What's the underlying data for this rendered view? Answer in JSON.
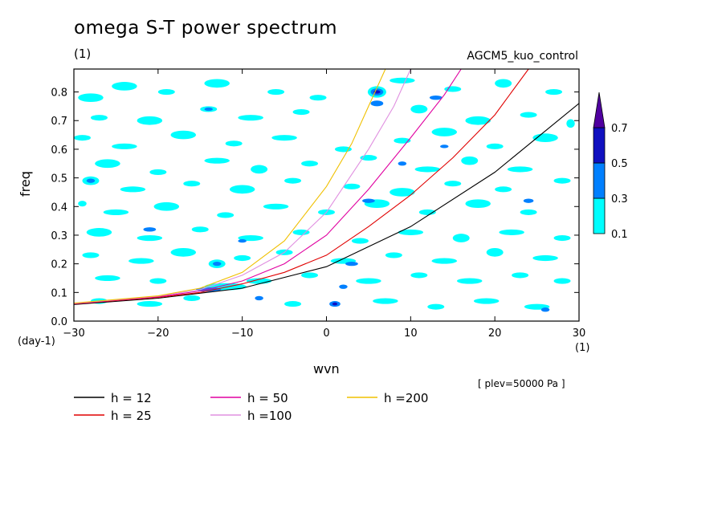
{
  "title": "omega S-T power spectrum",
  "unit_label": "(1)",
  "run_label": "AGCM5_kuo_control",
  "level_note": "[ plev=50000 Pa ]",
  "colors": {
    "level_0.1": "#00ffff",
    "level_0.3": "#0080ff",
    "level_0.5": "#1010c0",
    "level_0.7": "#5000a0",
    "h12": "#000000",
    "h25": "#e00000",
    "h50": "#e000a0",
    "h100": "#e090e0",
    "h200": "#f0c000"
  },
  "chart_data": {
    "type": "contour_fill_with_dispersion_curves",
    "title": "omega S-T power spectrum",
    "xlabel": "wvn",
    "ylabel": "freq",
    "x_unit": "(1)",
    "y_unit": "(day-1)",
    "xlim": [
      -30,
      30
    ],
    "ylim": [
      0,
      0.88
    ],
    "xticks": [
      -30,
      -20,
      -10,
      0,
      10,
      20,
      30
    ],
    "yticks": [
      0.0,
      0.1,
      0.2,
      0.3,
      0.4,
      0.5,
      0.6,
      0.7,
      0.8
    ],
    "contour_levels": [
      0.1,
      0.3,
      0.5,
      0.7
    ],
    "colorbar_labels": [
      "0.1",
      "0.3",
      "0.5",
      "0.7"
    ],
    "legend": [
      {
        "label": "h = 12",
        "color_key": "h12"
      },
      {
        "label": "h = 25",
        "color_key": "h25"
      },
      {
        "label": "h = 50",
        "color_key": "h50"
      },
      {
        "label": "h =100",
        "color_key": "h100"
      },
      {
        "label": "h =200",
        "color_key": "h200"
      }
    ],
    "curves": [
      {
        "label": "h = 12",
        "color_key": "h12",
        "points": [
          [
            -30,
            0.058
          ],
          [
            -20,
            0.08
          ],
          [
            -10,
            0.115
          ],
          [
            0,
            0.19
          ],
          [
            10,
            0.33
          ],
          [
            20,
            0.52
          ],
          [
            30,
            0.76
          ]
        ]
      },
      {
        "label": "h = 25",
        "color_key": "h25",
        "points": [
          [
            -30,
            0.06
          ],
          [
            -20,
            0.083
          ],
          [
            -15,
            0.1
          ],
          [
            -10,
            0.13
          ],
          [
            -5,
            0.17
          ],
          [
            0,
            0.23
          ],
          [
            5,
            0.33
          ],
          [
            10,
            0.44
          ],
          [
            15,
            0.57
          ],
          [
            20,
            0.72
          ],
          [
            24,
            0.88
          ]
        ]
      },
      {
        "label": "h = 50",
        "color_key": "h50",
        "points": [
          [
            -30,
            0.061
          ],
          [
            -20,
            0.085
          ],
          [
            -15,
            0.105
          ],
          [
            -10,
            0.14
          ],
          [
            -5,
            0.2
          ],
          [
            0,
            0.3
          ],
          [
            5,
            0.46
          ],
          [
            10,
            0.64
          ],
          [
            14,
            0.79
          ],
          [
            16,
            0.88
          ]
        ]
      },
      {
        "label": "h =100",
        "color_key": "h100",
        "points": [
          [
            -30,
            0.062
          ],
          [
            -20,
            0.087
          ],
          [
            -15,
            0.11
          ],
          [
            -10,
            0.16
          ],
          [
            -5,
            0.24
          ],
          [
            0,
            0.38
          ],
          [
            5,
            0.6
          ],
          [
            8,
            0.75
          ],
          [
            10,
            0.88
          ]
        ]
      },
      {
        "label": "h =200",
        "color_key": "h200",
        "points": [
          [
            -30,
            0.063
          ],
          [
            -20,
            0.088
          ],
          [
            -15,
            0.115
          ],
          [
            -10,
            0.17
          ],
          [
            -5,
            0.28
          ],
          [
            0,
            0.47
          ],
          [
            3,
            0.62
          ],
          [
            5,
            0.75
          ],
          [
            7,
            0.88
          ]
        ]
      }
    ],
    "blobs": [
      {
        "x": -28,
        "y": 0.78,
        "w": 3,
        "h": 0.03,
        "level": 0
      },
      {
        "x": -24,
        "y": 0.82,
        "w": 3,
        "h": 0.03,
        "level": 0
      },
      {
        "x": -19,
        "y": 0.8,
        "w": 2,
        "h": 0.02,
        "level": 0
      },
      {
        "x": -13,
        "y": 0.83,
        "w": 3,
        "h": 0.03,
        "level": 0
      },
      {
        "x": -6,
        "y": 0.8,
        "w": 2,
        "h": 0.02,
        "level": 0
      },
      {
        "x": -1,
        "y": 0.78,
        "w": 2,
        "h": 0.02,
        "level": 0
      },
      {
        "x": 9,
        "y": 0.84,
        "w": 3,
        "h": 0.02,
        "level": 0
      },
      {
        "x": 15,
        "y": 0.81,
        "w": 2,
        "h": 0.02,
        "level": 0
      },
      {
        "x": 21,
        "y": 0.83,
        "w": 2,
        "h": 0.03,
        "level": 0
      },
      {
        "x": 27,
        "y": 0.8,
        "w": 2,
        "h": 0.02,
        "level": 0
      },
      {
        "x": -27,
        "y": 0.71,
        "w": 2,
        "h": 0.02,
        "level": 0
      },
      {
        "x": -21,
        "y": 0.7,
        "w": 3,
        "h": 0.03,
        "level": 0
      },
      {
        "x": -14,
        "y": 0.74,
        "w": 2,
        "h": 0.02,
        "level": 0
      },
      {
        "x": -9,
        "y": 0.71,
        "w": 3,
        "h": 0.02,
        "level": 0
      },
      {
        "x": -3,
        "y": 0.73,
        "w": 2,
        "h": 0.02,
        "level": 0
      },
      {
        "x": 11,
        "y": 0.74,
        "w": 2,
        "h": 0.03,
        "level": 0
      },
      {
        "x": 18,
        "y": 0.7,
        "w": 3,
        "h": 0.03,
        "level": 0
      },
      {
        "x": 24,
        "y": 0.72,
        "w": 2,
        "h": 0.02,
        "level": 0
      },
      {
        "x": 29,
        "y": 0.69,
        "w": 1,
        "h": 0.03,
        "level": 0
      },
      {
        "x": -29,
        "y": 0.64,
        "w": 2,
        "h": 0.02,
        "level": 0
      },
      {
        "x": -24,
        "y": 0.61,
        "w": 3,
        "h": 0.02,
        "level": 0
      },
      {
        "x": -17,
        "y": 0.65,
        "w": 3,
        "h": 0.03,
        "level": 0
      },
      {
        "x": -11,
        "y": 0.62,
        "w": 2,
        "h": 0.02,
        "level": 0
      },
      {
        "x": -5,
        "y": 0.64,
        "w": 3,
        "h": 0.02,
        "level": 0
      },
      {
        "x": 2,
        "y": 0.6,
        "w": 2,
        "h": 0.02,
        "level": 0
      },
      {
        "x": 9,
        "y": 0.63,
        "w": 2,
        "h": 0.02,
        "level": 0
      },
      {
        "x": 14,
        "y": 0.66,
        "w": 3,
        "h": 0.03,
        "level": 0
      },
      {
        "x": 20,
        "y": 0.61,
        "w": 2,
        "h": 0.02,
        "level": 0
      },
      {
        "x": 26,
        "y": 0.64,
        "w": 3,
        "h": 0.03,
        "level": 0
      },
      {
        "x": -26,
        "y": 0.55,
        "w": 3,
        "h": 0.03,
        "level": 0
      },
      {
        "x": -20,
        "y": 0.52,
        "w": 2,
        "h": 0.02,
        "level": 0
      },
      {
        "x": -13,
        "y": 0.56,
        "w": 3,
        "h": 0.02,
        "level": 0
      },
      {
        "x": -8,
        "y": 0.53,
        "w": 2,
        "h": 0.03,
        "level": 0
      },
      {
        "x": -2,
        "y": 0.55,
        "w": 2,
        "h": 0.02,
        "level": 0
      },
      {
        "x": 5,
        "y": 0.57,
        "w": 2,
        "h": 0.02,
        "level": 0
      },
      {
        "x": 12,
        "y": 0.53,
        "w": 3,
        "h": 0.02,
        "level": 0
      },
      {
        "x": 17,
        "y": 0.56,
        "w": 2,
        "h": 0.03,
        "level": 0
      },
      {
        "x": 23,
        "y": 0.53,
        "w": 3,
        "h": 0.02,
        "level": 0
      },
      {
        "x": -28,
        "y": 0.49,
        "w": 2,
        "h": 0.03,
        "level": 0
      },
      {
        "x": -23,
        "y": 0.46,
        "w": 3,
        "h": 0.02,
        "level": 0
      },
      {
        "x": -16,
        "y": 0.48,
        "w": 2,
        "h": 0.02,
        "level": 0
      },
      {
        "x": -10,
        "y": 0.46,
        "w": 3,
        "h": 0.03,
        "level": 0
      },
      {
        "x": -4,
        "y": 0.49,
        "w": 2,
        "h": 0.02,
        "level": 0
      },
      {
        "x": 3,
        "y": 0.47,
        "w": 2,
        "h": 0.02,
        "level": 0
      },
      {
        "x": 9,
        "y": 0.45,
        "w": 3,
        "h": 0.03,
        "level": 0
      },
      {
        "x": 15,
        "y": 0.48,
        "w": 2,
        "h": 0.02,
        "level": 0
      },
      {
        "x": 21,
        "y": 0.46,
        "w": 2,
        "h": 0.02,
        "level": 0
      },
      {
        "x": 28,
        "y": 0.49,
        "w": 2,
        "h": 0.02,
        "level": 0
      },
      {
        "x": -29,
        "y": 0.41,
        "w": 1,
        "h": 0.02,
        "level": 0
      },
      {
        "x": -25,
        "y": 0.38,
        "w": 3,
        "h": 0.02,
        "level": 0
      },
      {
        "x": -19,
        "y": 0.4,
        "w": 3,
        "h": 0.03,
        "level": 0
      },
      {
        "x": -12,
        "y": 0.37,
        "w": 2,
        "h": 0.02,
        "level": 0
      },
      {
        "x": -6,
        "y": 0.4,
        "w": 3,
        "h": 0.02,
        "level": 0
      },
      {
        "x": 0,
        "y": 0.38,
        "w": 2,
        "h": 0.02,
        "level": 0
      },
      {
        "x": 6,
        "y": 0.41,
        "w": 3,
        "h": 0.03,
        "level": 0
      },
      {
        "x": 12,
        "y": 0.38,
        "w": 2,
        "h": 0.02,
        "level": 0
      },
      {
        "x": 18,
        "y": 0.41,
        "w": 3,
        "h": 0.03,
        "level": 0
      },
      {
        "x": 24,
        "y": 0.38,
        "w": 2,
        "h": 0.02,
        "level": 0
      },
      {
        "x": -27,
        "y": 0.31,
        "w": 3,
        "h": 0.03,
        "level": 0
      },
      {
        "x": -21,
        "y": 0.29,
        "w": 3,
        "h": 0.02,
        "level": 0
      },
      {
        "x": -15,
        "y": 0.32,
        "w": 2,
        "h": 0.02,
        "level": 0
      },
      {
        "x": -9,
        "y": 0.29,
        "w": 3,
        "h": 0.02,
        "level": 0
      },
      {
        "x": -3,
        "y": 0.31,
        "w": 2,
        "h": 0.02,
        "level": 0
      },
      {
        "x": 4,
        "y": 0.28,
        "w": 2,
        "h": 0.02,
        "level": 0
      },
      {
        "x": 10,
        "y": 0.31,
        "w": 3,
        "h": 0.02,
        "level": 0
      },
      {
        "x": 16,
        "y": 0.29,
        "w": 2,
        "h": 0.03,
        "level": 0
      },
      {
        "x": 22,
        "y": 0.31,
        "w": 3,
        "h": 0.02,
        "level": 0
      },
      {
        "x": 28,
        "y": 0.29,
        "w": 2,
        "h": 0.02,
        "level": 0
      },
      {
        "x": -28,
        "y": 0.23,
        "w": 2,
        "h": 0.02,
        "level": 0
      },
      {
        "x": -22,
        "y": 0.21,
        "w": 3,
        "h": 0.02,
        "level": 0
      },
      {
        "x": -17,
        "y": 0.24,
        "w": 3,
        "h": 0.03,
        "level": 0
      },
      {
        "x": -10,
        "y": 0.22,
        "w": 2,
        "h": 0.02,
        "level": 0
      },
      {
        "x": -5,
        "y": 0.24,
        "w": 2,
        "h": 0.02,
        "level": 0
      },
      {
        "x": 2,
        "y": 0.21,
        "w": 3,
        "h": 0.02,
        "level": 0
      },
      {
        "x": 8,
        "y": 0.23,
        "w": 2,
        "h": 0.02,
        "level": 0
      },
      {
        "x": 14,
        "y": 0.21,
        "w": 3,
        "h": 0.02,
        "level": 0
      },
      {
        "x": 20,
        "y": 0.24,
        "w": 2,
        "h": 0.03,
        "level": 0
      },
      {
        "x": 26,
        "y": 0.22,
        "w": 3,
        "h": 0.02,
        "level": 0
      },
      {
        "x": -26,
        "y": 0.15,
        "w": 3,
        "h": 0.02,
        "level": 0
      },
      {
        "x": -20,
        "y": 0.14,
        "w": 2,
        "h": 0.02,
        "level": 0
      },
      {
        "x": -8,
        "y": 0.14,
        "w": 3,
        "h": 0.02,
        "level": 0
      },
      {
        "x": -2,
        "y": 0.16,
        "w": 2,
        "h": 0.02,
        "level": 0
      },
      {
        "x": 5,
        "y": 0.14,
        "w": 3,
        "h": 0.02,
        "level": 0
      },
      {
        "x": 11,
        "y": 0.16,
        "w": 2,
        "h": 0.02,
        "level": 0
      },
      {
        "x": 17,
        "y": 0.14,
        "w": 3,
        "h": 0.02,
        "level": 0
      },
      {
        "x": 23,
        "y": 0.16,
        "w": 2,
        "h": 0.02,
        "level": 0
      },
      {
        "x": 28,
        "y": 0.14,
        "w": 2,
        "h": 0.02,
        "level": 0
      },
      {
        "x": -27,
        "y": 0.07,
        "w": 2,
        "h": 0.02,
        "level": 0
      },
      {
        "x": -21,
        "y": 0.06,
        "w": 3,
        "h": 0.02,
        "level": 0
      },
      {
        "x": -16,
        "y": 0.08,
        "w": 2,
        "h": 0.02,
        "level": 0
      },
      {
        "x": -4,
        "y": 0.06,
        "w": 2,
        "h": 0.02,
        "level": 0
      },
      {
        "x": 7,
        "y": 0.07,
        "w": 3,
        "h": 0.02,
        "level": 0
      },
      {
        "x": 13,
        "y": 0.05,
        "w": 2,
        "h": 0.02,
        "level": 0
      },
      {
        "x": 19,
        "y": 0.07,
        "w": 3,
        "h": 0.02,
        "level": 0
      },
      {
        "x": 25,
        "y": 0.05,
        "w": 3,
        "h": 0.02,
        "level": 0
      },
      {
        "x": -12,
        "y": 0.12,
        "w": 5,
        "h": 0.025,
        "level": 0
      },
      {
        "x": -14,
        "y": 0.11,
        "w": 3,
        "h": 0.015,
        "level": 1
      },
      {
        "x": -13,
        "y": 0.2,
        "w": 2,
        "h": 0.03,
        "level": 0
      },
      {
        "x": -13,
        "y": 0.2,
        "w": 1,
        "h": 0.015,
        "level": 1
      },
      {
        "x": -28,
        "y": 0.49,
        "w": 1,
        "h": 0.015,
        "level": 1
      },
      {
        "x": -21,
        "y": 0.32,
        "w": 1.5,
        "h": 0.015,
        "level": 1
      },
      {
        "x": -10,
        "y": 0.28,
        "w": 1,
        "h": 0.012,
        "level": 1
      },
      {
        "x": 6,
        "y": 0.8,
        "w": 2.2,
        "h": 0.04,
        "level": 0
      },
      {
        "x": 6,
        "y": 0.8,
        "w": 1.5,
        "h": 0.025,
        "level": 1
      },
      {
        "x": 6,
        "y": 0.8,
        "w": 0.8,
        "h": 0.012,
        "level": 2
      },
      {
        "x": 6,
        "y": 0.76,
        "w": 1.5,
        "h": 0.02,
        "level": 1
      },
      {
        "x": 3,
        "y": 0.2,
        "w": 1.5,
        "h": 0.015,
        "level": 1
      },
      {
        "x": 2,
        "y": 0.12,
        "w": 1,
        "h": 0.015,
        "level": 1
      },
      {
        "x": 1,
        "y": 0.06,
        "w": 1.3,
        "h": 0.02,
        "level": 1
      },
      {
        "x": 1,
        "y": 0.06,
        "w": 0.6,
        "h": 0.01,
        "level": 2
      },
      {
        "x": 5,
        "y": 0.42,
        "w": 1.5,
        "h": 0.015,
        "level": 1
      },
      {
        "x": 9,
        "y": 0.55,
        "w": 1,
        "h": 0.015,
        "level": 1
      },
      {
        "x": 13,
        "y": 0.78,
        "w": 1.5,
        "h": 0.015,
        "level": 1
      },
      {
        "x": 14,
        "y": 0.61,
        "w": 1,
        "h": 0.012,
        "level": 1
      },
      {
        "x": 24,
        "y": 0.42,
        "w": 1.2,
        "h": 0.015,
        "level": 1
      },
      {
        "x": 26,
        "y": 0.04,
        "w": 1,
        "h": 0.015,
        "level": 1
      },
      {
        "x": -8,
        "y": 0.08,
        "w": 1,
        "h": 0.015,
        "level": 1
      },
      {
        "x": -14,
        "y": 0.74,
        "w": 1,
        "h": 0.012,
        "level": 1
      }
    ]
  }
}
